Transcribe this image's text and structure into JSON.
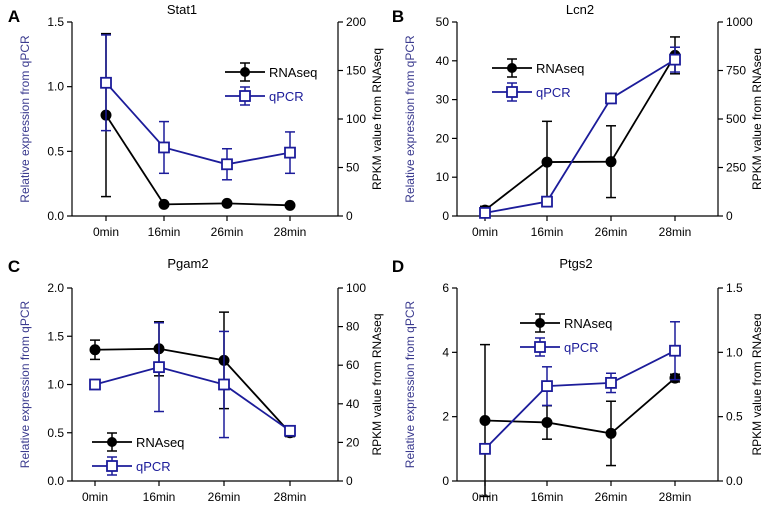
{
  "figure": {
    "colors": {
      "rnaseq": "#000000",
      "qpcr": "#1c1c9a",
      "left_axis_label": "#3b3b8f",
      "axis": "#000000"
    }
  },
  "chart_data": [
    {
      "panel": "A",
      "title": "Stat1",
      "type": "line",
      "categories": [
        "0min",
        "16min",
        "26min",
        "28min"
      ],
      "ylabel_left": "Relative expression from qPCR",
      "ylabel_right": "RPKM  value from RNAseq",
      "yticks_left": [
        "0.0",
        "0.5",
        "1.0",
        "1.5"
      ],
      "yticks_right": [
        "0",
        "50",
        "100",
        "150",
        "200"
      ],
      "ylim_left": [
        0,
        1.5
      ],
      "ylim_right": [
        0,
        200
      ],
      "legend_position": "top-right",
      "series": [
        {
          "name": "RNAseq",
          "axis": "right",
          "marker": "filled-circle",
          "values": [
            104,
            12,
            13,
            11
          ],
          "err_low": [
            84,
            0,
            0,
            0
          ],
          "err_high": [
            84,
            0,
            0,
            0
          ]
        },
        {
          "name": "qPCR",
          "axis": "left",
          "marker": "open-square",
          "values": [
            1.03,
            0.53,
            0.4,
            0.49
          ],
          "err_low": [
            0.37,
            0.2,
            0.12,
            0.16
          ],
          "err_high": [
            0.37,
            0.2,
            0.12,
            0.16
          ]
        }
      ]
    },
    {
      "panel": "B",
      "title": "Lcn2",
      "type": "line",
      "categories": [
        "0min",
        "16min",
        "26min",
        "28min"
      ],
      "ylabel_left": "Relative expression from qPCR",
      "ylabel_right": "RPKM  value from RNAseq",
      "yticks_left": [
        "0",
        "10",
        "20",
        "30",
        "40",
        "50"
      ],
      "yticks_right": [
        "0",
        "250",
        "500",
        "750",
        "1000"
      ],
      "ylim_left": [
        0,
        50
      ],
      "ylim_right": [
        0,
        1000
      ],
      "legend_position": "top-left",
      "series": [
        {
          "name": "RNAseq",
          "axis": "right",
          "marker": "filled-circle",
          "values": [
            30,
            278,
            280,
            828
          ],
          "err_low": [
            20,
            210,
            185,
            95
          ],
          "err_high": [
            20,
            210,
            185,
            95
          ]
        },
        {
          "name": "qPCR",
          "axis": "left",
          "marker": "open-square",
          "values": [
            0.8,
            3.7,
            30.3,
            40.3
          ],
          "err_low": [
            0.5,
            0.8,
            0.5,
            3.2
          ],
          "err_high": [
            0.5,
            0.8,
            0.5,
            3.2
          ]
        }
      ]
    },
    {
      "panel": "C",
      "title": "Pgam2",
      "type": "line",
      "categories": [
        "0min",
        "16min",
        "26min",
        "28min"
      ],
      "ylabel_left": "Relative expression from qPCR",
      "ylabel_right": "RPKM  value from RNAseq",
      "yticks_left": [
        "0.0",
        "0.5",
        "1.0",
        "1.5",
        "2.0"
      ],
      "yticks_right": [
        "0",
        "20",
        "40",
        "60",
        "80",
        "100"
      ],
      "ylim_left": [
        0,
        2.0
      ],
      "ylim_right": [
        0,
        100
      ],
      "legend_position": "bottom-left",
      "series": [
        {
          "name": "RNAseq",
          "axis": "right",
          "marker": "filled-circle",
          "values": [
            68,
            68.5,
            62.5,
            25
          ],
          "err_low": [
            5,
            14,
            25,
            2
          ],
          "err_high": [
            5,
            14,
            25,
            2
          ]
        },
        {
          "name": "qPCR",
          "axis": "left",
          "marker": "open-square",
          "values": [
            1.0,
            1.18,
            1.0,
            0.52
          ],
          "err_low": [
            0.05,
            0.46,
            0.55,
            0.04
          ],
          "err_high": [
            0.05,
            0.46,
            0.55,
            0.04
          ]
        }
      ]
    },
    {
      "panel": "D",
      "title": "Ptgs2",
      "type": "line",
      "categories": [
        "0min",
        "16min",
        "26min",
        "28min"
      ],
      "ylabel_left": "Relative expression from qPCR",
      "ylabel_right": "RPKM  value from RNAseq",
      "yticks_left": [
        "0",
        "2",
        "4",
        "6"
      ],
      "yticks_right": [
        "0.0",
        "0.5",
        "1.0",
        "1.5"
      ],
      "ylim_left": [
        0,
        6
      ],
      "ylim_right": [
        0,
        1.5
      ],
      "legend_position": "top-left",
      "series": [
        {
          "name": "RNAseq",
          "axis": "right",
          "marker": "filled-circle",
          "values": [
            0.47,
            0.455,
            0.37,
            0.8
          ],
          "err_low": [
            0.59,
            0.13,
            0.25,
            0.03
          ],
          "err_high": [
            0.59,
            0.13,
            0.25,
            0.03
          ]
        },
        {
          "name": "qPCR",
          "axis": "left",
          "marker": "open-square",
          "values": [
            1.0,
            2.95,
            3.05,
            4.05
          ],
          "err_low": [
            0.0,
            0.6,
            0.3,
            0.9
          ],
          "err_high": [
            0.0,
            0.6,
            0.3,
            0.9
          ]
        }
      ]
    }
  ]
}
